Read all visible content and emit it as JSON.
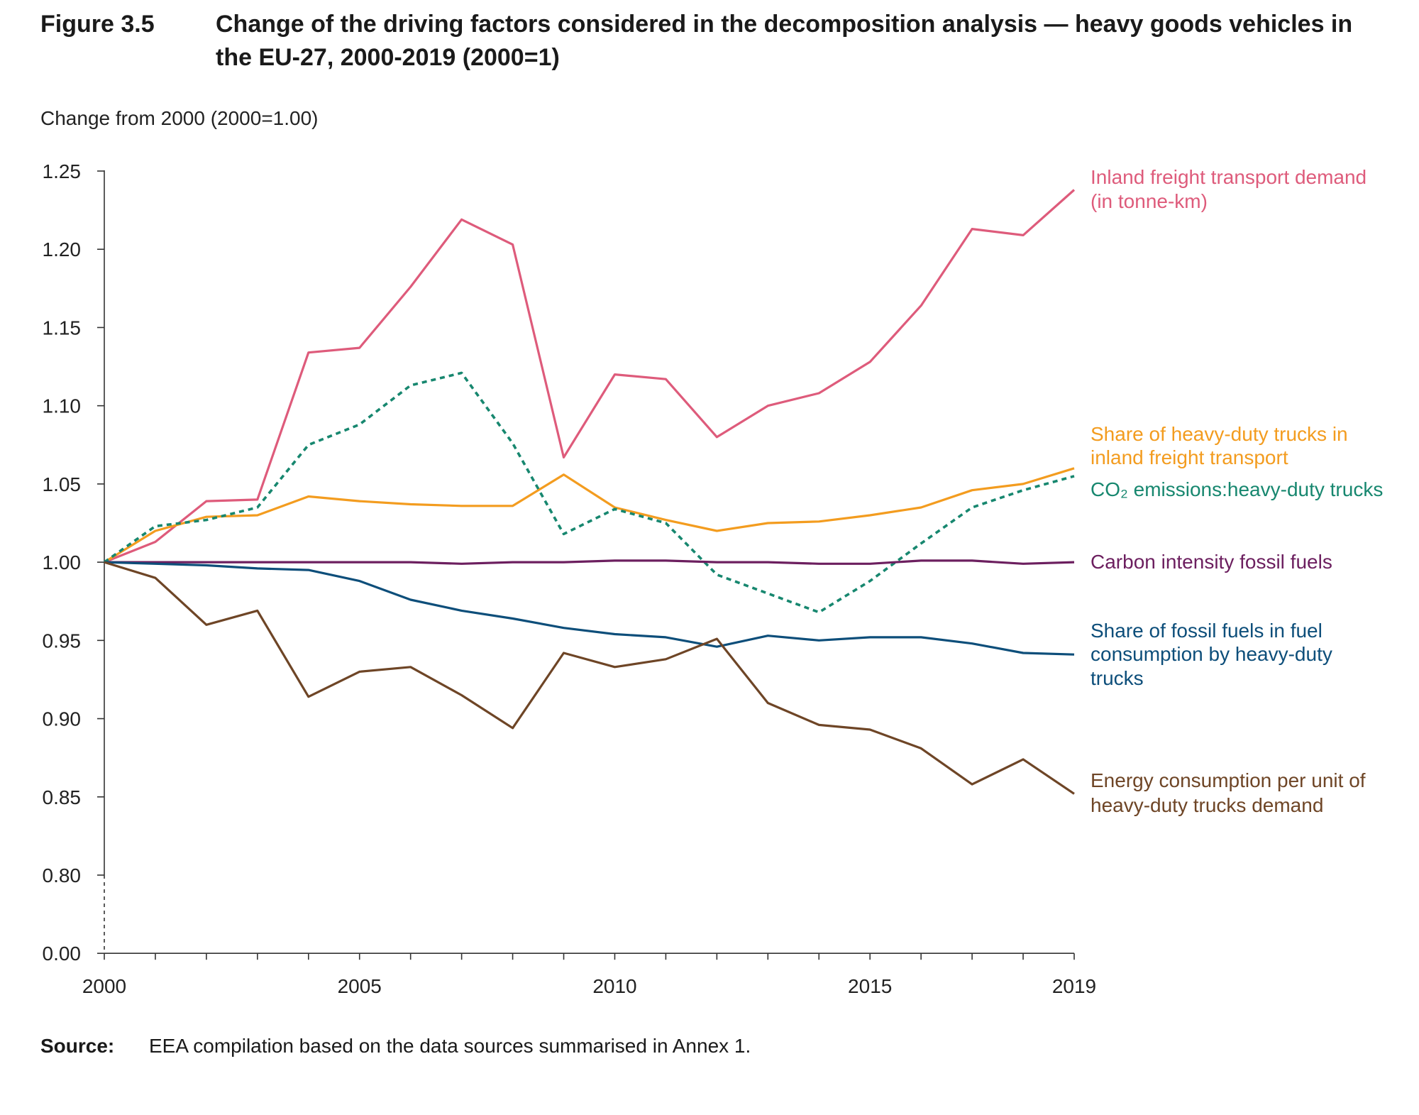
{
  "chart_data": {
    "type": "line",
    "figure_label": "Figure 3.5",
    "title": "Change of the driving factors considered in the decomposition analysis — heavy goods vehicles in the EU-27, 2000-2019 (2000=1)",
    "ylabel": "Change from 2000 (2000=1.00)",
    "x": [
      2000,
      2001,
      2002,
      2003,
      2004,
      2005,
      2006,
      2007,
      2008,
      2009,
      2010,
      2011,
      2012,
      2013,
      2014,
      2015,
      2016,
      2017,
      2018,
      2019
    ],
    "xtick_labels": [
      "2000",
      "2005",
      "2010",
      "2015",
      "2019"
    ],
    "ytick_labels": [
      "1.25",
      "1.20",
      "1.15",
      "1.10",
      "1.05",
      "1.00",
      "0.95",
      "0.90",
      "0.85",
      "0.80"
    ],
    "ylim": [
      0.8,
      1.25
    ],
    "axis_break": {
      "below": 0.8,
      "baseline_label": "0.00"
    },
    "grid": false,
    "series": [
      {
        "label": [
          "Inland freight transport demand",
          "(in tonne-km)"
        ],
        "color": "#de5b7b",
        "dotted": false,
        "values": [
          1.0,
          1.013,
          1.039,
          1.04,
          1.134,
          1.137,
          1.176,
          1.219,
          1.203,
          1.067,
          1.12,
          1.117,
          1.08,
          1.1,
          1.108,
          1.128,
          1.164,
          1.213,
          1.209,
          1.238
        ]
      },
      {
        "label": [
          "Share of heavy-duty trucks in",
          "inland freight transport"
        ],
        "color": "#f39c1f",
        "dotted": false,
        "values": [
          1.0,
          1.02,
          1.029,
          1.03,
          1.042,
          1.039,
          1.037,
          1.036,
          1.036,
          1.056,
          1.035,
          1.027,
          1.02,
          1.025,
          1.026,
          1.03,
          1.035,
          1.046,
          1.05,
          1.06
        ]
      },
      {
        "label": [
          "CO₂ emissions:heavy-duty trucks"
        ],
        "color": "#17876f",
        "dotted": true,
        "values": [
          1.0,
          1.023,
          1.027,
          1.035,
          1.075,
          1.088,
          1.113,
          1.121,
          1.076,
          1.018,
          1.034,
          1.025,
          0.992,
          0.98,
          0.968,
          0.988,
          1.012,
          1.035,
          1.046,
          1.055
        ]
      },
      {
        "label": [
          "Carbon intensity fossil fuels"
        ],
        "color": "#6c1f5f",
        "dotted": false,
        "values": [
          1.0,
          1.0,
          1.0,
          1.0,
          1.0,
          1.0,
          1.0,
          0.999,
          1.0,
          1.0,
          1.001,
          1.001,
          1.0,
          1.0,
          0.999,
          0.999,
          1.001,
          1.001,
          0.999,
          1.0
        ]
      },
      {
        "label": [
          "Share of fossil fuels in fuel",
          "consumption by heavy-duty",
          "trucks"
        ],
        "color": "#0d4e7a",
        "dotted": false,
        "values": [
          1.0,
          0.999,
          0.998,
          0.996,
          0.995,
          0.988,
          0.976,
          0.969,
          0.964,
          0.958,
          0.954,
          0.952,
          0.946,
          0.953,
          0.95,
          0.952,
          0.952,
          0.948,
          0.942,
          0.941
        ]
      },
      {
        "label": [
          "Energy consumption per unit of",
          "heavy-duty trucks demand"
        ],
        "color": "#6e4526",
        "dotted": false,
        "values": [
          1.0,
          0.99,
          0.96,
          0.969,
          0.914,
          0.93,
          0.933,
          0.915,
          0.894,
          0.942,
          0.933,
          0.938,
          0.951,
          0.91,
          0.896,
          0.893,
          0.881,
          0.858,
          0.874,
          0.852
        ]
      }
    ]
  },
  "source": {
    "label": "Source:",
    "text": "EEA compilation based on the data sources summarised in Annex 1."
  }
}
